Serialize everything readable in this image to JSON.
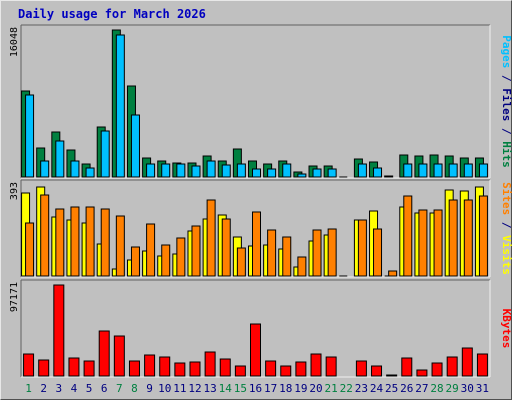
{
  "chart_data": {
    "title": "Daily usage for March 2026",
    "type": "bar",
    "x": [
      "1",
      "2",
      "3",
      "4",
      "5",
      "6",
      "7",
      "8",
      "9",
      "10",
      "11",
      "12",
      "13",
      "14",
      "15",
      "16",
      "17",
      "18",
      "19",
      "20",
      "21",
      "22",
      "23",
      "24",
      "25",
      "26",
      "27",
      "28",
      "29",
      "30",
      "31"
    ],
    "weekend_days": [
      1,
      7,
      8,
      14,
      15,
      21,
      22,
      28,
      29
    ],
    "colors": {
      "hits": "#008040",
      "files": "#00c0ff",
      "pages": "#00c0ff",
      "visits": "#ffff00",
      "sites": "#ff8000",
      "kbytes": "#ff0000",
      "weekday_label": "#000080",
      "weekend_label": "#008040"
    },
    "panels": [
      {
        "name": "hits-files",
        "ymax": 16048,
        "label_parts": [
          {
            "text": "Pages",
            "color": "#00c0ff"
          },
          {
            "text": " / ",
            "color": "#000080"
          },
          {
            "text": "Files",
            "color": "#000080"
          },
          {
            "text": " / ",
            "color": "#000080"
          },
          {
            "text": "Hits",
            "color": "#008040"
          }
        ],
        "series": [
          {
            "name": "Hits",
            "color": "#008040",
            "values": [
              9400,
              3200,
              4900,
              2900,
              1400,
              5500,
              16048,
              9900,
              2100,
              1800,
              1500,
              1500,
              2300,
              1800,
              3100,
              1800,
              1400,
              1800,
              500,
              1200,
              1200,
              0,
              2000,
              1600,
              100,
              2400,
              2300,
              2400,
              2300,
              2100,
              2100
            ]
          },
          {
            "name": "Files",
            "color": "#00c0ff",
            "values": [
              9000,
              1800,
              3900,
              1700,
              1000,
              5000,
              15500,
              6800,
              1400,
              1400,
              1400,
              1200,
              1800,
              1300,
              1400,
              900,
              900,
              1400,
              300,
              900,
              900,
              0,
              1400,
              1000,
              0,
              1400,
              1400,
              1400,
              1400,
              1400,
              1400
            ]
          }
        ]
      },
      {
        "name": "visits-sites",
        "ymax": 393,
        "label_parts": [
          {
            "text": "Sites",
            "color": "#ff8000"
          },
          {
            "text": " / ",
            "color": "#000080"
          },
          {
            "text": "Visits",
            "color": "#ffff00"
          }
        ],
        "series": [
          {
            "name": "Visits",
            "color": "#ffff00",
            "values": [
              360,
              385,
              255,
              240,
              230,
              140,
              30,
              70,
              110,
              85,
              95,
              195,
              245,
              265,
              170,
              130,
              135,
              115,
              40,
              150,
              175,
              0,
              240,
              280,
              0,
              300,
              270,
              270,
              370,
              365,
              385
            ]
          },
          {
            "name": "Sites",
            "color": "#ff8000",
            "values": [
              230,
              350,
              290,
              300,
              300,
              290,
              260,
              125,
              225,
              135,
              165,
              215,
              330,
              245,
              120,
              275,
              200,
              170,
              80,
              200,
              205,
              0,
              240,
              205,
              20,
              345,
              285,
              285,
              330,
              330,
              345
            ]
          }
        ]
      },
      {
        "name": "kbytes",
        "ymax": 97171,
        "label_parts": [
          {
            "text": "KBytes",
            "color": "#ff0000"
          }
        ],
        "series": [
          {
            "name": "KBytes",
            "color": "#ff0000",
            "values": [
              23000,
              17000,
              97171,
              19000,
              16000,
              48000,
              43000,
              16000,
              22000,
              20000,
              14000,
              15000,
              26000,
              18000,
              11000,
              55000,
              16000,
              11000,
              15000,
              24000,
              20000,
              0,
              16000,
              11000,
              1000,
              19000,
              6000,
              14000,
              20000,
              30000,
              23000
            ]
          }
        ]
      }
    ]
  }
}
